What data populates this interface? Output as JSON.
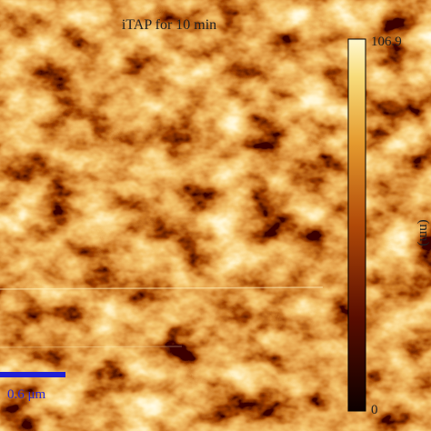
{
  "figure": {
    "title": "iTAP for 10 min",
    "colorbar": {
      "max_label": "106.9",
      "min_label": "0",
      "unit": "(nm)"
    },
    "scale_bar": "0.6 μm"
  }
}
